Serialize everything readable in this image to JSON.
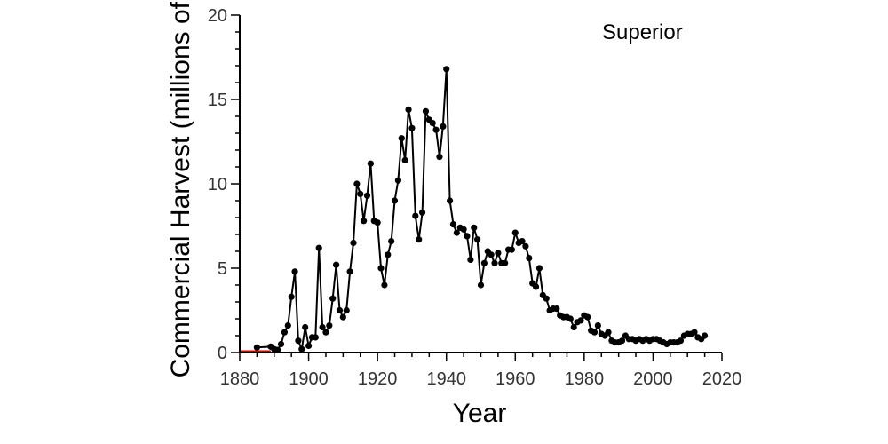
{
  "chart_data": {
    "type": "line",
    "xlabel": "Year",
    "ylabel": "Commercial Harvest (millions of",
    "annotation": "Superior",
    "xlim": [
      1880,
      2020
    ],
    "ylim": [
      0,
      20
    ],
    "xticks": [
      1880,
      1900,
      1920,
      1940,
      1960,
      1980,
      2000,
      2020
    ],
    "yticks": [
      0,
      5,
      10,
      15,
      20
    ],
    "grid": false,
    "line_color": "#000000",
    "marker_color": "#000000",
    "baseline_color": "#cc0000",
    "baseline_x": [
      1880,
      1889
    ],
    "series": [
      {
        "x": [
          1885,
          1889,
          1890,
          1891,
          1892,
          1893,
          1894,
          1895,
          1896,
          1897,
          1898,
          1899,
          1900,
          1901,
          1902,
          1903,
          1904,
          1905,
          1906,
          1907,
          1908,
          1909,
          1910,
          1911,
          1912,
          1913,
          1914,
          1915,
          1916,
          1917,
          1918,
          1919,
          1920,
          1921,
          1922,
          1923,
          1924,
          1925,
          1926,
          1927,
          1928,
          1929,
          1930,
          1931,
          1932,
          1933,
          1934,
          1935,
          1936,
          1937,
          1938,
          1939,
          1940,
          1941,
          1942,
          1943,
          1944,
          1945,
          1946,
          1947,
          1948,
          1949,
          1950,
          1951,
          1952,
          1953,
          1954,
          1955,
          1956,
          1957,
          1958,
          1959,
          1960,
          1961,
          1962,
          1963,
          1964,
          1965,
          1966,
          1967,
          1968,
          1969,
          1970,
          1971,
          1972,
          1973,
          1974,
          1975,
          1976,
          1977,
          1978,
          1979,
          1980,
          1981,
          1982,
          1983,
          1984,
          1985,
          1986,
          1987,
          1988,
          1989,
          1990,
          1991,
          1992,
          1993,
          1994,
          1995,
          1996,
          1997,
          1998,
          1999,
          2000,
          2001,
          2002,
          2003,
          2004,
          2005,
          2006,
          2007,
          2008,
          2009,
          2010,
          2011,
          2012,
          2013,
          2014,
          2015
        ],
        "y": [
          0.3,
          0.35,
          0.2,
          0.15,
          0.5,
          1.2,
          1.6,
          3.3,
          4.8,
          0.7,
          0.2,
          1.5,
          0.4,
          0.9,
          0.9,
          6.2,
          1.5,
          1.2,
          1.6,
          3.2,
          5.2,
          2.5,
          2.1,
          2.5,
          4.8,
          6.5,
          10.0,
          9.4,
          7.8,
          9.3,
          11.2,
          7.8,
          7.7,
          5.0,
          4.0,
          5.8,
          6.6,
          9.0,
          10.2,
          12.7,
          11.4,
          14.4,
          13.3,
          8.1,
          6.7,
          8.3,
          14.3,
          13.8,
          13.6,
          13.2,
          11.6,
          13.4,
          16.8,
          9.0,
          7.6,
          7.1,
          7.4,
          7.3,
          6.9,
          5.5,
          7.4,
          6.7,
          4.0,
          5.3,
          6.0,
          5.8,
          5.3,
          5.9,
          5.3,
          5.3,
          6.1,
          6.1,
          7.1,
          6.5,
          6.6,
          6.3,
          5.6,
          4.1,
          3.9,
          5.0,
          3.4,
          3.2,
          2.5,
          2.6,
          2.6,
          2.2,
          2.1,
          2.1,
          2.0,
          1.5,
          1.8,
          1.9,
          2.2,
          2.1,
          1.3,
          1.2,
          1.6,
          1.1,
          1.0,
          1.2,
          0.7,
          0.6,
          0.6,
          0.7,
          1.0,
          0.8,
          0.8,
          0.7,
          0.8,
          0.7,
          0.8,
          0.7,
          0.8,
          0.8,
          0.7,
          0.6,
          0.5,
          0.6,
          0.6,
          0.6,
          0.7,
          1.0,
          1.1,
          1.1,
          1.2,
          0.9,
          0.8,
          1.0
        ]
      }
    ]
  }
}
